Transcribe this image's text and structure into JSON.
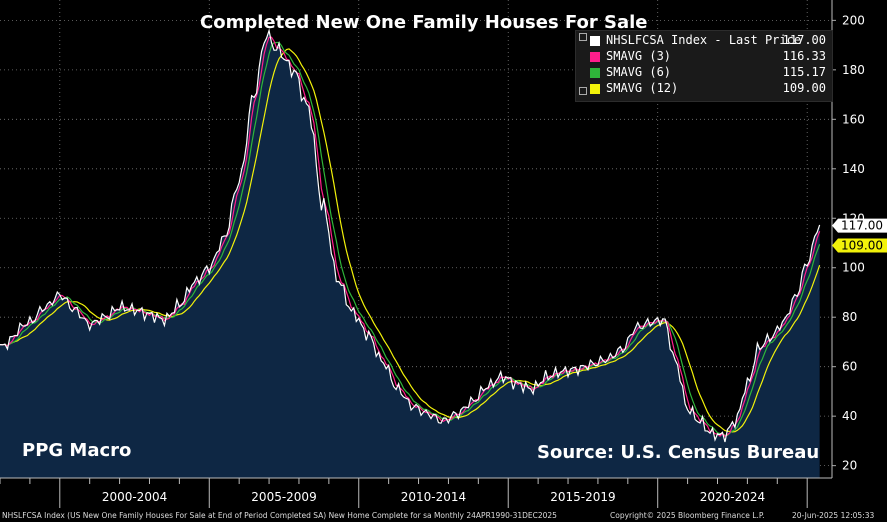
{
  "chart_data": {
    "type": "line",
    "title": "Completed New One Family Houses For Sale",
    "frequency": "Monthly",
    "x_range": [
      "1998-01",
      "2025-05"
    ],
    "ylim": [
      15,
      205
    ],
    "y_ticks": [
      20,
      40,
      60,
      80,
      100,
      120,
      140,
      160,
      180,
      200
    ],
    "x_period_labels": [
      "2000-2004",
      "2005-2009",
      "2010-2014",
      "2015-2019",
      "2020-2024"
    ],
    "x_major_years": [
      2000,
      2005,
      2010,
      2015,
      2020,
      2025
    ],
    "grid": true,
    "legend_position": "top-right",
    "series": [
      {
        "name": "NHSLFCSA Index - Last Price",
        "color": "#ffffff",
        "last_value": "117.00",
        "area_fill": "#0e2744"
      },
      {
        "name": "SMAVG (3)",
        "color": "#ff1e8c",
        "last_value": "116.33"
      },
      {
        "name": "SMAVG (6)",
        "color": "#2fb53a",
        "last_value": "115.17"
      },
      {
        "name": "SMAVG (12)",
        "color": "#f2f20a",
        "last_value": "109.00"
      }
    ],
    "index_anchors": {
      "x": [
        1998.0,
        1999.0,
        1999.5,
        2000.0,
        2000.5,
        2001.0,
        2001.5,
        2002.0,
        2002.5,
        2003.0,
        2003.5,
        2004.0,
        2004.5,
        2005.0,
        2005.5,
        2006.0,
        2006.5,
        2006.9,
        2007.3,
        2007.8,
        2008.3,
        2008.8,
        2009.3,
        2009.8,
        2010.3,
        2010.8,
        2011.3,
        2011.8,
        2012.3,
        2012.8,
        2013.3,
        2013.8,
        2014.3,
        2014.8,
        2015.3,
        2015.8,
        2016.3,
        2016.8,
        2017.3,
        2017.8,
        2018.3,
        2018.8,
        2019.3,
        2019.8,
        2020.2,
        2020.6,
        2021.0,
        2021.4,
        2021.8,
        2022.2,
        2022.6,
        2023.0,
        2023.4,
        2023.8,
        2024.2,
        2024.6,
        2025.0,
        2025.4
      ],
      "y": [
        68,
        78,
        84,
        89,
        83,
        77,
        80,
        84,
        83,
        81,
        79,
        85,
        94,
        100,
        112,
        135,
        170,
        194,
        188,
        180,
        165,
        125,
        95,
        82,
        73,
        62,
        51,
        44,
        41,
        38,
        41,
        46,
        52,
        56,
        53,
        51,
        56,
        58,
        59,
        61,
        63,
        67,
        76,
        78,
        79,
        62,
        43,
        38,
        33,
        32,
        38,
        53,
        68,
        72,
        78,
        88,
        102,
        117
      ]
    },
    "annotations": [
      "PPG Macro",
      "Source: U.S. Census Bureau"
    ]
  },
  "legend_icons": [
    "expand-box-icon",
    "collapse-box-icon"
  ],
  "axis": {
    "last_price_tag": "117.00",
    "sma12_tag": "109.00"
  },
  "watermark": {
    "left": "PPG Macro",
    "right": "Source: U.S. Census Bureau"
  },
  "footer": {
    "description": "NHSLFCSA Index (US New One Family Houses For Sale at End of Period Completed SA) New Home Complete for sa  Monthly 24APR1990-31DEC2025",
    "copyright": "Copyright© 2025 Bloomberg Finance L.P.",
    "timestamp": "20-Jun-2025 12:05:33"
  }
}
